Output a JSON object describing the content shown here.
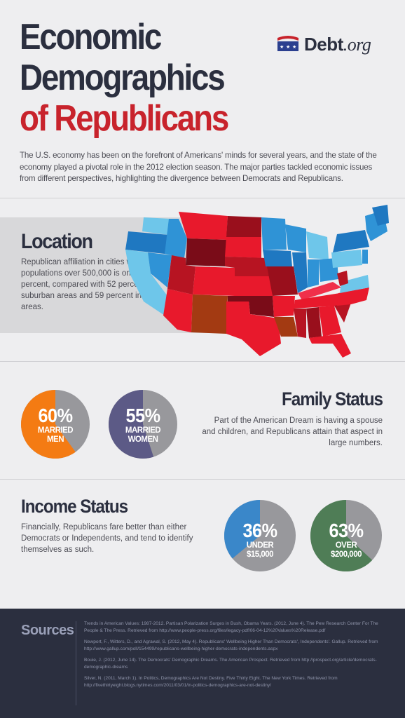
{
  "title": {
    "line1": "Economic",
    "line2": "Demographics",
    "line3": "of Republicans"
  },
  "logo": {
    "name": "Debt",
    "suffix": ".org",
    "colors": {
      "red": "#c8232c",
      "blue": "#2b3f8f"
    }
  },
  "intro": "The U.S. economy has been on the forefront of Americans' minds for several years, and the state of the economy played a pivotal role in the 2012 election season. The major parties tackled economic issues from different perspectives, highlighting the divergence between Democrats and Republicans.",
  "location": {
    "heading": "Location",
    "text": "Republican affiliation in cities with populations over 500,000 is only 39 percent, compared with 52 percent in suburban areas and 59 percent in rural areas.",
    "map_icon": "us-states-map"
  },
  "family": {
    "heading": "Family Status",
    "text": "Part of the American Dream is having a spouse and children, and Republicans attain that aspect in large numbers.",
    "pies": [
      {
        "pct": "60%",
        "caption1": "MARRIED",
        "caption2": "MEN",
        "value": 0.6,
        "color": "#f47b13"
      },
      {
        "pct": "55%",
        "caption1": "MARRIED",
        "caption2": "WOMEN",
        "value": 0.55,
        "color": "#5c5a86"
      }
    ]
  },
  "income": {
    "heading": "Income Status",
    "text": "Financially, Republicans fare better than either Democrats or Independents, and tend to identify themselves as such.",
    "pies": [
      {
        "pct": "36%",
        "caption1": "UNDER",
        "caption2": "$15,000",
        "value": 0.36,
        "color": "#3a87c9"
      },
      {
        "pct": "63%",
        "caption1": "OVER",
        "caption2": "$200,000",
        "value": 0.63,
        "color": "#4f7d56"
      }
    ]
  },
  "pie_remainder_color": "#98989c",
  "sources": {
    "heading": "Sources",
    "items": [
      "Trends in American Values: 1987-2012. Partisan Polarization Surges in Bush, Obama Years. (2012, June 4). The Pew Research Center For The People & The Press. Retrieved from http://www.people-press.org/files/legacy-pdf/06-04-12%20Values%20Release.pdf",
      "Newport, F., Witters, D., and Agrawal, S. (2012, May 4). Republicans' Wellbeing Higher Than Democrats', Independents'. Gallup. Retrieved from http://www.gallup.com/poll/154499/republicans-wellbeing-higher-democrats-independents.aspx",
      "Bouie, J. (2012, June 14). The Democrats' Demographic Dreams. The American Prospect. Retrieved from http://prospect.org/article/democrats-demographic-dreams",
      "Silver, N. (2011, March 1). In Politics, Demographics Are Not Destiny. Five Thirty Eight. The New York Times. Retrieved from http://fivethirtyeight.blogs.nytimes.com/2011/03/01/in-politics-demographics-are-not-destiny/"
    ]
  }
}
